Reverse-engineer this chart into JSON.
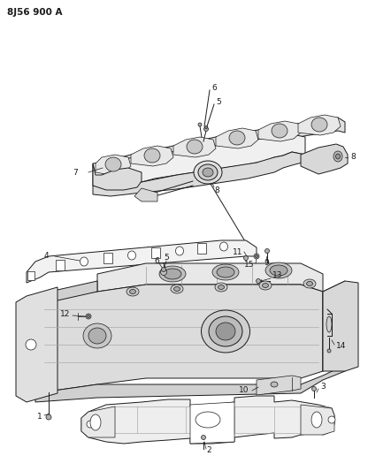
{
  "bg_color": "#ffffff",
  "lc": "#1a1a1a",
  "title": "8J56 900 A",
  "fig_w": 4.16,
  "fig_h": 5.33,
  "dpi": 100
}
